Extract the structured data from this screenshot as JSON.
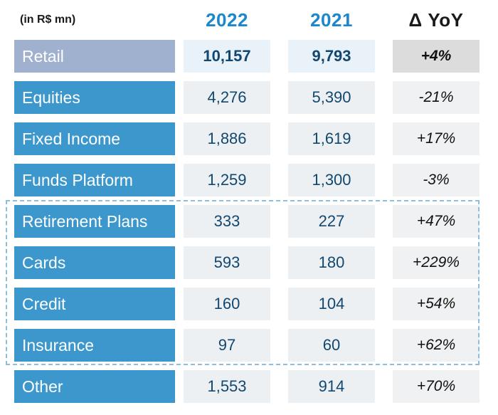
{
  "header": {
    "unit_label": "(in R$ mn)",
    "col_2022": "2022",
    "col_2021": "2021",
    "col_delta": "Δ YoY"
  },
  "rows": [
    {
      "label": "Retail",
      "v2022": "10,157",
      "v2021": "9,793",
      "delta": "+4%",
      "highlight": true
    },
    {
      "label": "Equities",
      "v2022": "4,276",
      "v2021": "5,390",
      "delta": "-21%",
      "highlight": false
    },
    {
      "label": "Fixed Income",
      "v2022": "1,886",
      "v2021": "1,619",
      "delta": "+17%",
      "highlight": false
    },
    {
      "label": "Funds Platform",
      "v2022": "1,259",
      "v2021": "1,300",
      "delta": "-3%",
      "highlight": false
    },
    {
      "label": "Retirement Plans",
      "v2022": "333",
      "v2021": "227",
      "delta": "+47%",
      "highlight": false
    },
    {
      "label": "Cards",
      "v2022": "593",
      "v2021": "180",
      "delta": "+229%",
      "highlight": false
    },
    {
      "label": "Credit",
      "v2022": "160",
      "v2021": "104",
      "delta": "+54%",
      "highlight": false
    },
    {
      "label": "Insurance",
      "v2022": "97",
      "v2021": "60",
      "delta": "+62%",
      "highlight": false
    },
    {
      "label": "Other",
      "v2022": "1,553",
      "v2021": "914",
      "delta": "+70%",
      "highlight": false
    }
  ],
  "dashed_group_rows": [
    "Retirement Plans",
    "Cards",
    "Credit",
    "Insurance"
  ],
  "colors": {
    "accent_blue": "#1b87ce",
    "row_label_blue": "#3c97cd",
    "retail_label_blue_gray": "#9fb1ce",
    "retail_value_bg": "#e9f1f9",
    "retail_delta_bg": "#dcdcdc",
    "value_bg": "#edf0f3",
    "delta_bg": "#f0f1f2",
    "value_text": "#12486f",
    "dashed_border": "#8ebede"
  },
  "chart_data": {
    "type": "table",
    "title": "(in R$ mn)",
    "columns": [
      "2022",
      "2021",
      "Δ YoY"
    ],
    "categories": [
      "Retail",
      "Equities",
      "Fixed Income",
      "Funds Platform",
      "Retirement Plans",
      "Cards",
      "Credit",
      "Insurance",
      "Other"
    ],
    "series": [
      {
        "name": "2022",
        "values": [
          10157,
          4276,
          1886,
          1259,
          333,
          593,
          160,
          97,
          1553
        ]
      },
      {
        "name": "2021",
        "values": [
          9793,
          5390,
          1619,
          1300,
          227,
          180,
          104,
          60,
          914
        ]
      },
      {
        "name": "Δ YoY",
        "values": [
          "+4%",
          "-21%",
          "+17%",
          "-3%",
          "+47%",
          "+229%",
          "+54%",
          "+62%",
          "+70%"
        ]
      }
    ],
    "annotations": [
      "Dashed blue outline groups rows: Retirement Plans, Cards, Credit, Insurance",
      "Retail row highlighted in gray-blue with bold values"
    ]
  }
}
